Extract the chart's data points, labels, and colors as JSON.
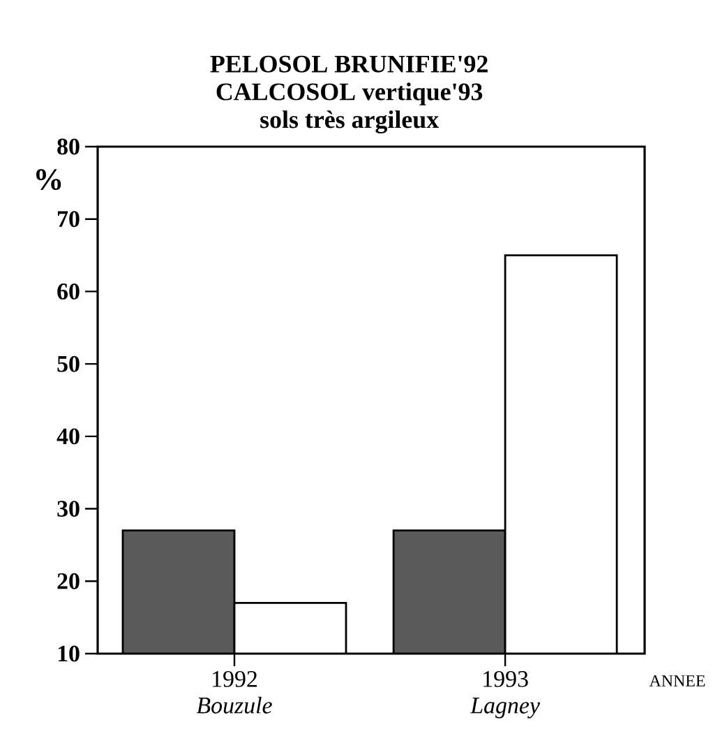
{
  "chart_data": {
    "type": "bar",
    "title": "PELOSOL BRUNIFIE'92 CALCOSOL vertique'93",
    "subtitle": "sols très argileux",
    "ylabel": "%",
    "xlabel": "ANNEE",
    "categories": [
      "1992 *Bouzule*",
      "1993 *Lagney*"
    ],
    "series": [
      {
        "color": "#5a5a5a",
        "values": [
          27,
          27
        ]
      },
      {
        "color": "#ffffff",
        "values": [
          17,
          65
        ]
      }
    ],
    "ylim": [
      10,
      80
    ],
    "yticks": [
      10,
      20,
      30,
      40,
      50,
      60,
      70,
      80
    ],
    "grid": false
  }
}
